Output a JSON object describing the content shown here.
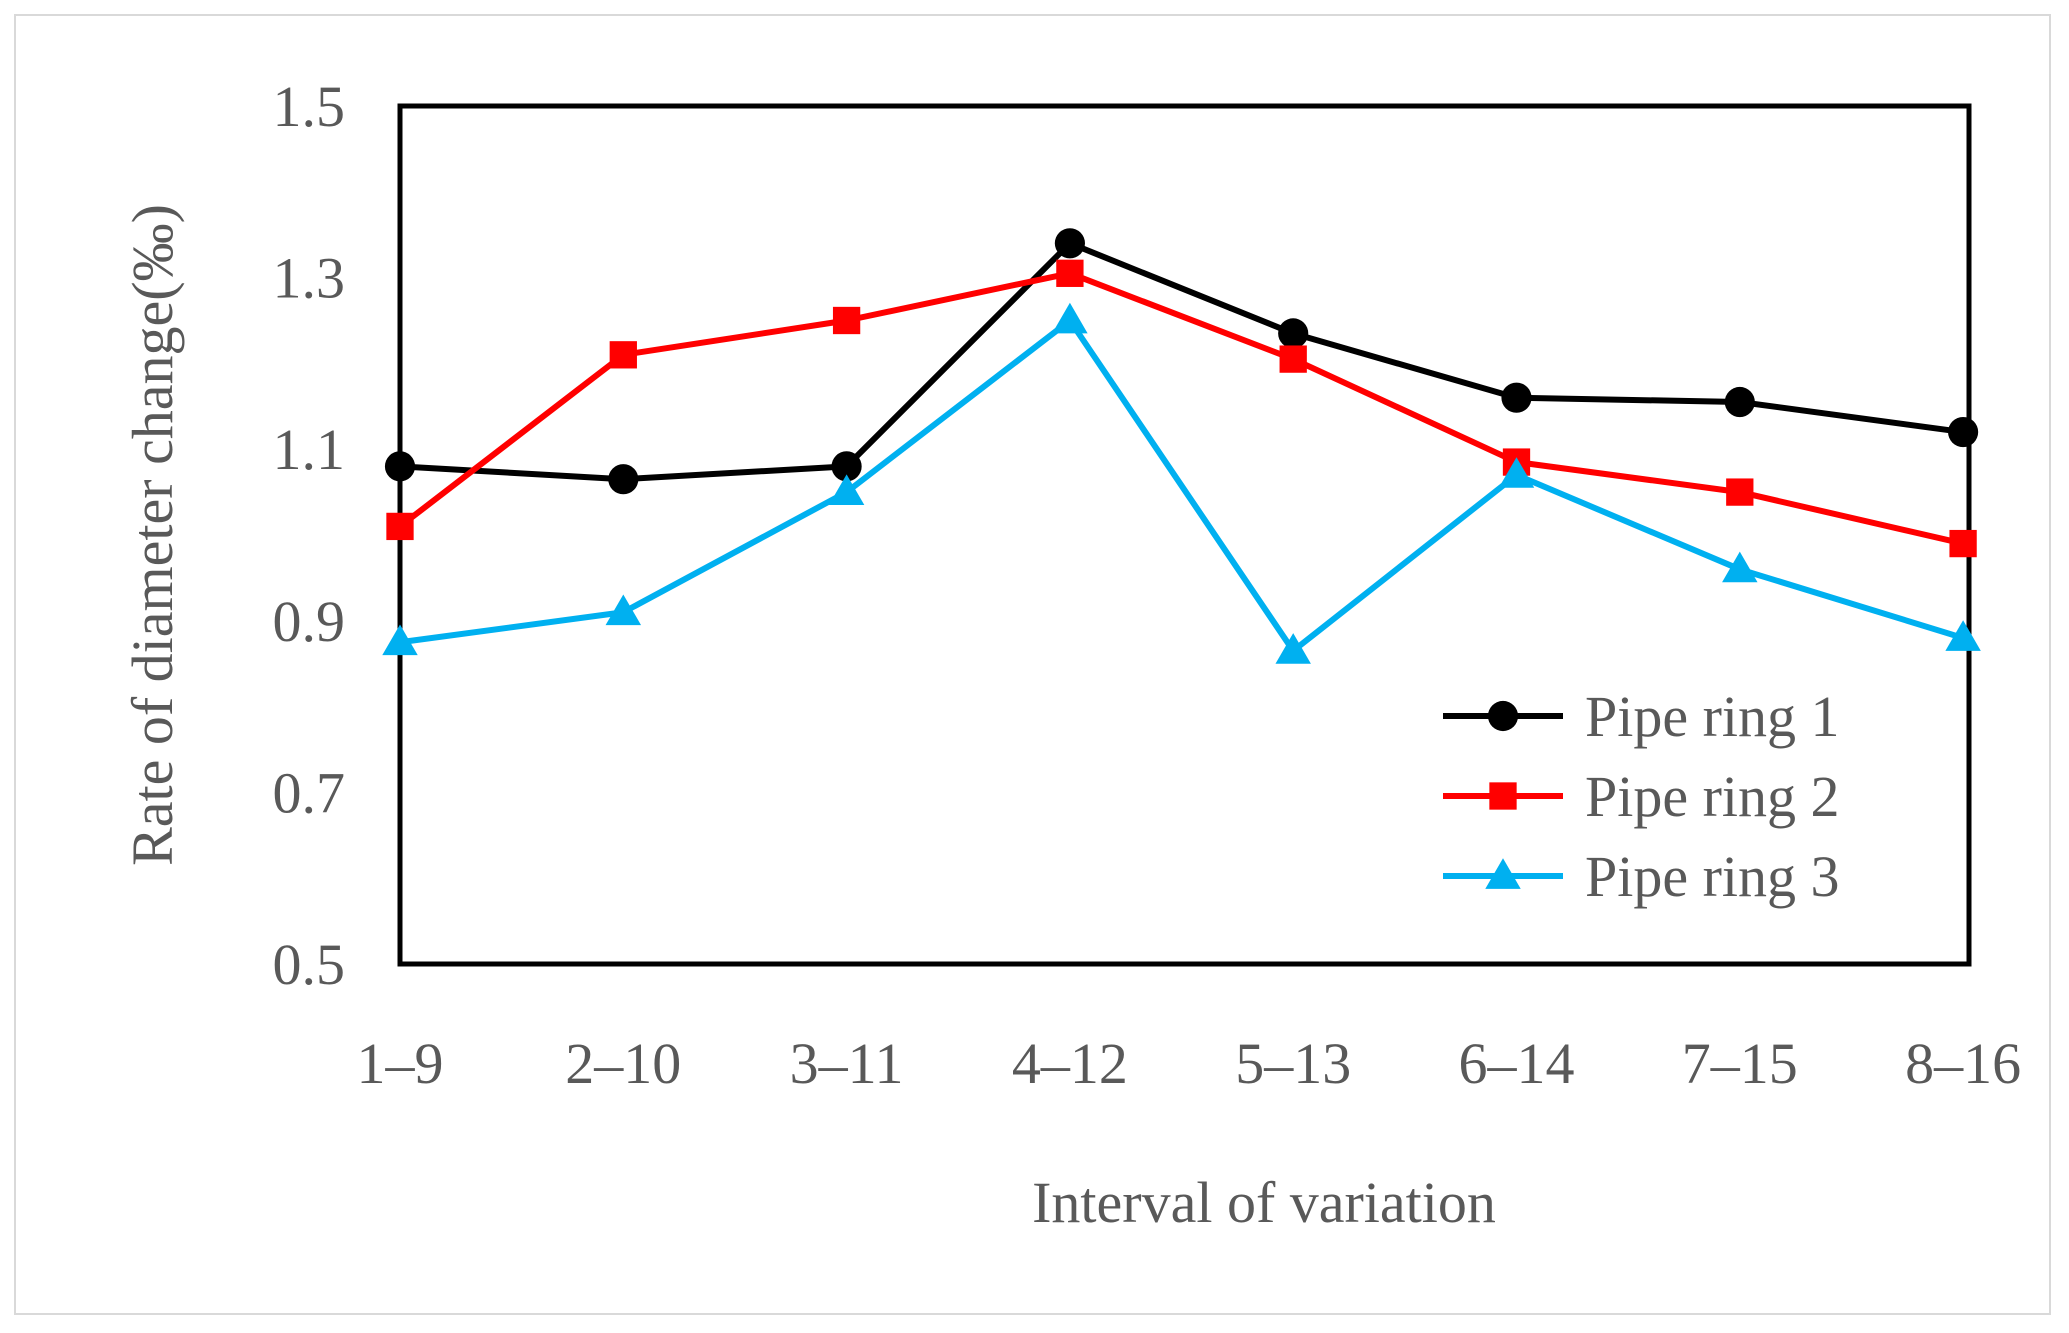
{
  "chart_data": {
    "type": "line",
    "title": "",
    "xlabel": "Interval of variation",
    "ylabel": "Rate of diameter change(‰)",
    "categories": [
      "1–9",
      "2–10",
      "3–11",
      "4–12",
      "5–13",
      "6–14",
      "7–15",
      "8–16"
    ],
    "ylim": [
      0.5,
      1.5
    ],
    "yticks": [
      "0.5",
      "0.7",
      "0.9",
      "1.1",
      "1.3",
      "1.5"
    ],
    "ytick_values": [
      0.5,
      0.7,
      0.9,
      1.1,
      1.3,
      1.5
    ],
    "grid": false,
    "legend_position": "bottom-right",
    "series": [
      {
        "name": "Pipe ring 1",
        "color": "#000000",
        "marker": "circle",
        "values": [
          1.08,
          1.065,
          1.08,
          1.34,
          1.235,
          1.16,
          1.155,
          1.12
        ]
      },
      {
        "name": "Pipe ring 2",
        "color": "#ff0000",
        "marker": "square",
        "values": [
          1.01,
          1.21,
          1.25,
          1.305,
          1.205,
          1.085,
          1.05,
          0.99
        ]
      },
      {
        "name": "Pipe ring 3",
        "color": "#00b0f0",
        "marker": "triangle",
        "values": [
          0.875,
          0.91,
          1.05,
          1.25,
          0.865,
          1.07,
          0.96,
          0.88
        ]
      }
    ]
  }
}
